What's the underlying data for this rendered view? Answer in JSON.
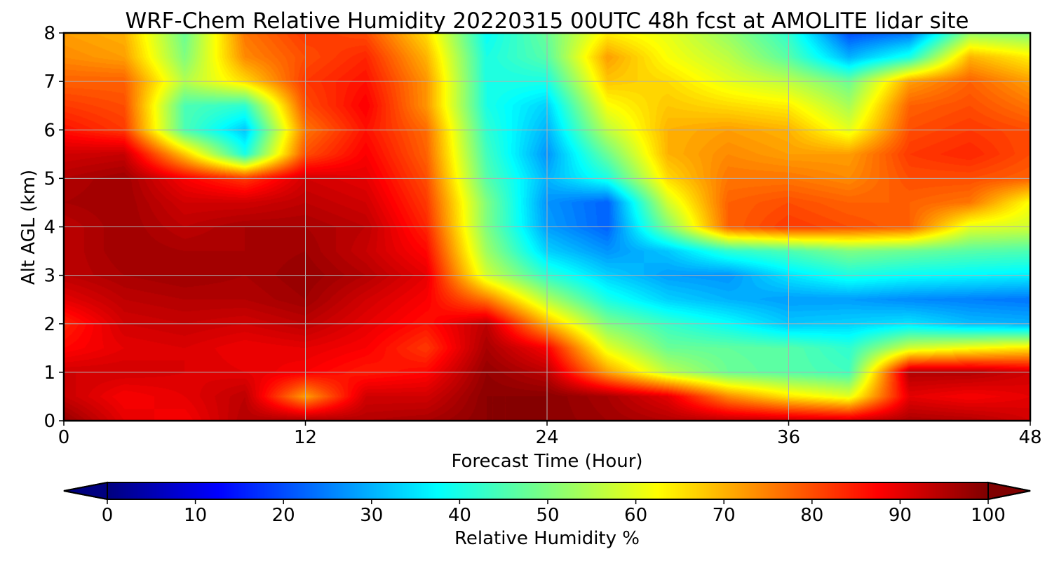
{
  "chart_data": {
    "type": "heatmap",
    "title": "WRF-Chem Relative Humidity 20220315 00UTC 48h fcst at AMOLITE lidar site",
    "xlabel": "Forecast Time (Hour)",
    "ylabel": "Alt AGL (km)",
    "xlim": [
      0,
      48
    ],
    "ylim": [
      0,
      8
    ],
    "xticks": [
      0,
      12,
      24,
      36,
      48
    ],
    "yticks": [
      0,
      1,
      2,
      3,
      4,
      5,
      6,
      7,
      8
    ],
    "grid": true,
    "colormap": "jet",
    "colorbar": {
      "label": "Relative Humidity %",
      "range": [
        0,
        100
      ],
      "ticks": [
        0,
        10,
        20,
        30,
        40,
        50,
        60,
        70,
        80,
        90,
        100
      ],
      "extend": "both",
      "orientation": "horizontal"
    },
    "x": [
      0,
      3,
      6,
      9,
      12,
      15,
      18,
      21,
      24,
      27,
      30,
      33,
      36,
      39,
      42,
      45,
      48
    ],
    "y": [
      0,
      0.5,
      1,
      1.5,
      2,
      2.5,
      3,
      3.5,
      4,
      4.5,
      5,
      5.5,
      6,
      6.5,
      7,
      7.5,
      8
    ],
    "z": [
      [
        98,
        90,
        88,
        95,
        96,
        95,
        96,
        99,
        99,
        97,
        95,
        94,
        93,
        92,
        96,
        95,
        92
      ],
      [
        93,
        88,
        90,
        94,
        72,
        92,
        92,
        99,
        99,
        96,
        90,
        74,
        65,
        60,
        90,
        88,
        90
      ],
      [
        92,
        92,
        91,
        90,
        88,
        85,
        87,
        98,
        94,
        72,
        56,
        48,
        46,
        44,
        95,
        95,
        92
      ],
      [
        87,
        90,
        91,
        89,
        90,
        88,
        82,
        96,
        88,
        60,
        48,
        47,
        46,
        42,
        58,
        62,
        65
      ],
      [
        84,
        92,
        93,
        92,
        94,
        90,
        86,
        94,
        70,
        50,
        43,
        38,
        32,
        33,
        35,
        31,
        30
      ],
      [
        90,
        94,
        95,
        95,
        97,
        92,
        88,
        76,
        55,
        40,
        33,
        30,
        28,
        28,
        26,
        25,
        24
      ],
      [
        94,
        96,
        97,
        96,
        98,
        95,
        90,
        58,
        42,
        33,
        28,
        27,
        35,
        40,
        38,
        37,
        36
      ],
      [
        94,
        97,
        96,
        96,
        97,
        93,
        87,
        53,
        33,
        27,
        32,
        42,
        45,
        50,
        48,
        46,
        45
      ],
      [
        94,
        97,
        94,
        96,
        96,
        94,
        84,
        50,
        28,
        22,
        50,
        78,
        82,
        80,
        78,
        60,
        58
      ],
      [
        96,
        97,
        92,
        92,
        94,
        92,
        82,
        50,
        27,
        22,
        58,
        78,
        80,
        78,
        78,
        76,
        62
      ],
      [
        95,
        97,
        88,
        82,
        92,
        90,
        80,
        46,
        30,
        40,
        66,
        76,
        76,
        74,
        80,
        80,
        78
      ],
      [
        92,
        93,
        68,
        40,
        80,
        88,
        78,
        44,
        27,
        48,
        70,
        74,
        72,
        72,
        82,
        84,
        80
      ],
      [
        86,
        82,
        45,
        32,
        76,
        86,
        77,
        42,
        30,
        56,
        70,
        72,
        70,
        60,
        80,
        82,
        80
      ],
      [
        82,
        80,
        45,
        42,
        80,
        88,
        73,
        40,
        33,
        62,
        68,
        66,
        64,
        54,
        78,
        80,
        76
      ],
      [
        78,
        78,
        55,
        66,
        82,
        86,
        73,
        40,
        40,
        68,
        66,
        60,
        56,
        48,
        72,
        78,
        72
      ],
      [
        74,
        72,
        50,
        74,
        80,
        84,
        70,
        40,
        46,
        72,
        62,
        56,
        46,
        30,
        40,
        70,
        64
      ],
      [
        72,
        70,
        48,
        76,
        82,
        80,
        66,
        38,
        48,
        64,
        60,
        52,
        42,
        20,
        24,
        52,
        50
      ]
    ]
  }
}
